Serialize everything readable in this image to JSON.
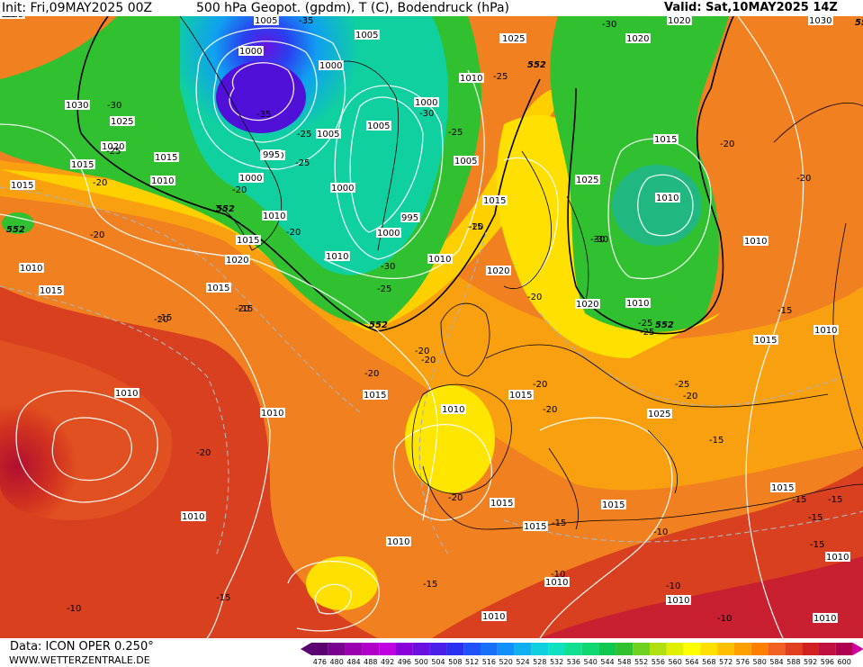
{
  "header": {
    "init": "Init: Fri,09MAY2025 00Z",
    "title": "500 hPa Geopot. (gpdm), T (C), Bodendruck (hPa)",
    "valid": "Valid: Sat,10MAY2025 14Z"
  },
  "footer": {
    "data_source": "Data: ICON OPER 0.250°",
    "website": "WWW.WETTERZENTRALE.DE"
  },
  "legend": {
    "values": [
      "476",
      "480",
      "484",
      "488",
      "492",
      "496",
      "500",
      "504",
      "508",
      "512",
      "516",
      "520",
      "524",
      "528",
      "532",
      "536",
      "540",
      "544",
      "548",
      "552",
      "556",
      "560",
      "564",
      "568",
      "572",
      "576",
      "580",
      "584",
      "588",
      "592",
      "596",
      "600"
    ],
    "colors": [
      "#5a0070",
      "#7a0090",
      "#9a00b0",
      "#b000c8",
      "#c000e0",
      "#8a00d8",
      "#6a10e0",
      "#4a20e8",
      "#2a30f0",
      "#2050f8",
      "#1870f8",
      "#1090f8",
      "#10b0f0",
      "#10d0e0",
      "#10e0c0",
      "#10e090",
      "#10d870",
      "#10c850",
      "#30c030",
      "#70d020",
      "#b0e010",
      "#e0f000",
      "#ffff00",
      "#ffe000",
      "#ffc000",
      "#ffa000",
      "#ff8000",
      "#f06020",
      "#e04020",
      "#d02020",
      "#c01040",
      "#b00050"
    ]
  },
  "map": {
    "pressure_labels": [
      "1005",
      "1005",
      "1000",
      "1000",
      "1030",
      "1025",
      "1020",
      "1015",
      "1015",
      "1010",
      "1015",
      "1010",
      "1020",
      "1025",
      "1020",
      "1030",
      "1020",
      "1025",
      "1015",
      "995",
      "1000",
      "1005",
      "995",
      "1010",
      "1000",
      "1000",
      "1005",
      "1005",
      "1000",
      "1010",
      "1015",
      "1020",
      "1015",
      "1020",
      "1015",
      "1010",
      "1015",
      "1010",
      "1010",
      "1010",
      "1015",
      "1010",
      "1010",
      "1025",
      "1015",
      "1020",
      "1010",
      "1010",
      "1015",
      "1010",
      "1025",
      "1010",
      "1010",
      "1010",
      "1015",
      "1015",
      "1010",
      "1015",
      "1015",
      "1010",
      "1010",
      "1010",
      "1010"
    ],
    "temp_labels": [
      "-35",
      "-30",
      "-30",
      "-35",
      "-25",
      "-25",
      "-20",
      "-25",
      "-30",
      "-25",
      "-20",
      "-25",
      "-30",
      "-25",
      "-20",
      "-20",
      "-20",
      "-15",
      "-15",
      "-20",
      "-15",
      "-20",
      "-30",
      "-25",
      "-20",
      "-20",
      "-20",
      "-25",
      "-20",
      "-20",
      "-20",
      "-15",
      "-15",
      "-20",
      "-15",
      "-15",
      "-15",
      "-10",
      "-15",
      "-10",
      "-10",
      "-10",
      "-10",
      "-20",
      "-15",
      "-15",
      "-15",
      "-15",
      "-20",
      "-30",
      "-25",
      "-20",
      "-20"
    ],
    "contour_labels": [
      "552",
      "552",
      "552",
      "552",
      "552",
      "552"
    ]
  }
}
